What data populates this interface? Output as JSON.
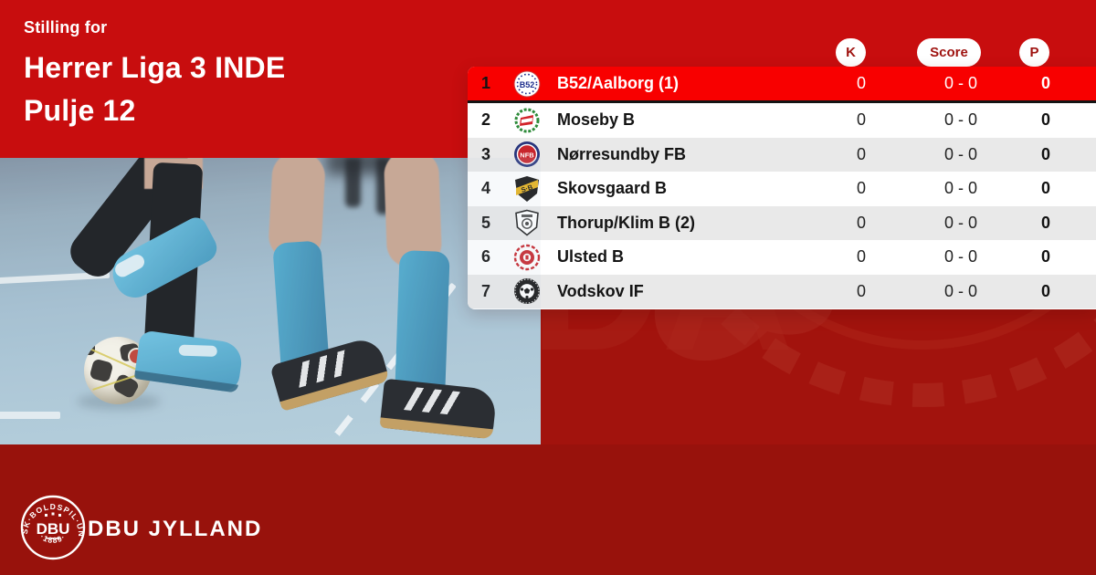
{
  "header": {
    "eyebrow": "Stilling for",
    "title_line1": "Herrer Liga 3 INDE",
    "title_line2": "Pulje 12"
  },
  "table": {
    "columns": {
      "k": "K",
      "score": "Score",
      "p": "P"
    },
    "rows": [
      {
        "pos": "1",
        "club": "B52/Aalborg (1)",
        "logo": "b52",
        "k": "0",
        "score": "0 - 0",
        "p": "0",
        "highlight": true
      },
      {
        "pos": "2",
        "club": "Moseby B",
        "logo": "moseby",
        "k": "0",
        "score": "0 - 0",
        "p": "0",
        "highlight": false
      },
      {
        "pos": "3",
        "club": "Nørresundby FB",
        "logo": "norresundby",
        "k": "0",
        "score": "0 - 0",
        "p": "0",
        "highlight": false
      },
      {
        "pos": "4",
        "club": "Skovsgaard B",
        "logo": "skovsgaard",
        "k": "0",
        "score": "0 - 0",
        "p": "0",
        "highlight": false
      },
      {
        "pos": "5",
        "club": "Thorup/Klim B (2)",
        "logo": "thorup",
        "k": "0",
        "score": "0 - 0",
        "p": "0",
        "highlight": false
      },
      {
        "pos": "6",
        "club": "Ulsted B",
        "logo": "ulsted",
        "k": "0",
        "score": "0 - 0",
        "p": "0",
        "highlight": false
      },
      {
        "pos": "7",
        "club": "Vodskov IF",
        "logo": "vodskov",
        "k": "0",
        "score": "0 - 0",
        "p": "0",
        "highlight": false
      }
    ]
  },
  "footer": {
    "brand": "DBU JYLLAND",
    "badge": {
      "ring_text": "DANSK·BOLDSPIL·UNION",
      "year_text": "·1889·",
      "center_text": "DBU"
    }
  },
  "colors": {
    "red_bright": "#c80d0e",
    "red_mid": "#a2130d",
    "red_deep": "#98120c",
    "highlight_row": "#f80000",
    "row_alt": "#e9e9e9",
    "pill_text": "#9e120f"
  }
}
